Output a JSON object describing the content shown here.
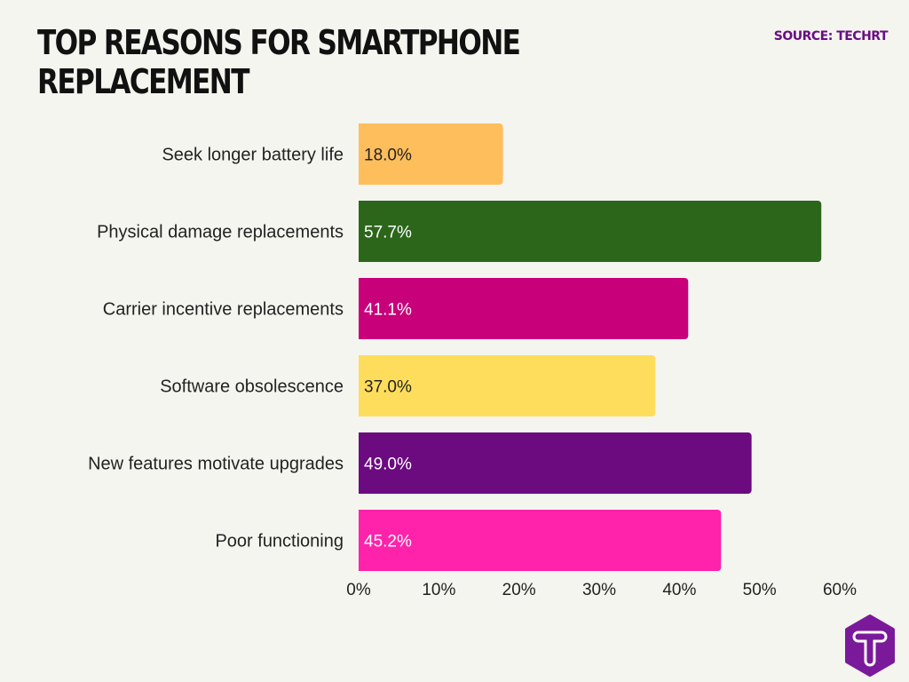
{
  "chart_data": {
    "type": "bar",
    "orientation": "horizontal",
    "title": "TOP REASONS FOR SMARTPHONE REPLACEMENT",
    "source": "SOURCE: TECHRT",
    "categories": [
      "Seek longer battery life",
      "Physical damage replacements",
      "Carrier incentive replacements",
      "Software obsolescence",
      "New features motivate upgrades",
      "Poor functioning"
    ],
    "values": [
      18.0,
      57.7,
      41.1,
      37.0,
      49.0,
      45.2
    ],
    "value_labels": [
      "18.0%",
      "57.7%",
      "41.1%",
      "37.0%",
      "49.0%",
      "45.2%"
    ],
    "colors": [
      "#ffbe5c",
      "#2c661b",
      "#c8007a",
      "#ffdd5c",
      "#6c0a80",
      "#ff22aa"
    ],
    "label_colors": [
      "#222222",
      "#ffffff",
      "#ffffff",
      "#222222",
      "#ffffff",
      "#ffffff"
    ],
    "xlim": [
      0,
      60
    ],
    "xticks": [
      "0%",
      "10%",
      "20%",
      "30%",
      "40%",
      "50%",
      "60%"
    ],
    "grid": false,
    "legend": "none",
    "logo_letter": "T"
  }
}
